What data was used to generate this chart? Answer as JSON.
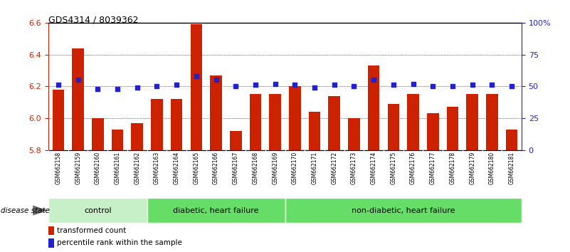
{
  "title": "GDS4314 / 8039362",
  "samples": [
    "GSM662158",
    "GSM662159",
    "GSM662160",
    "GSM662161",
    "GSM662162",
    "GSM662163",
    "GSM662164",
    "GSM662165",
    "GSM662166",
    "GSM662167",
    "GSM662168",
    "GSM662169",
    "GSM662170",
    "GSM662171",
    "GSM662172",
    "GSM662173",
    "GSM662174",
    "GSM662175",
    "GSM662176",
    "GSM662177",
    "GSM662178",
    "GSM662179",
    "GSM662180",
    "GSM662181"
  ],
  "red_values": [
    6.18,
    6.44,
    6.0,
    5.93,
    5.97,
    6.12,
    6.12,
    6.59,
    6.27,
    5.92,
    6.15,
    6.15,
    6.2,
    6.04,
    6.14,
    6.0,
    6.33,
    6.09,
    6.15,
    6.03,
    6.07,
    6.15,
    6.15,
    5.93
  ],
  "blue_values": [
    51,
    55,
    48,
    48,
    49,
    50,
    51,
    58,
    55,
    50,
    51,
    52,
    51,
    49,
    51,
    50,
    55,
    51,
    52,
    50,
    50,
    51,
    51,
    50
  ],
  "ylim_left": [
    5.8,
    6.6
  ],
  "ylim_right": [
    0,
    100
  ],
  "yticks_left": [
    5.8,
    6.0,
    6.2,
    6.4,
    6.6
  ],
  "yticks_right": [
    0,
    25,
    50,
    75,
    100
  ],
  "ytick_right_labels": [
    "0",
    "25",
    "50",
    "75",
    "100%"
  ],
  "group_ranges": [
    [
      0,
      4
    ],
    [
      5,
      11
    ],
    [
      12,
      23
    ]
  ],
  "group_labels": [
    "control",
    "diabetic, heart failure",
    "non-diabetic, heart failure"
  ],
  "group_colors": [
    "#C8F0C8",
    "#66DD66",
    "#66DD66"
  ],
  "bar_color": "#CC2200",
  "dot_color": "#2222CC",
  "bar_width": 0.6,
  "bg_color": "#FFFFFF",
  "tick_label_color_left": "#CC2200",
  "tick_label_color_right": "#2222CC",
  "label_bg_color": "#CCCCCC",
  "grid_color": "#000000",
  "legend_items": [
    {
      "color": "#CC2200",
      "label": "transformed count"
    },
    {
      "color": "#2222CC",
      "label": "percentile rank within the sample"
    }
  ]
}
